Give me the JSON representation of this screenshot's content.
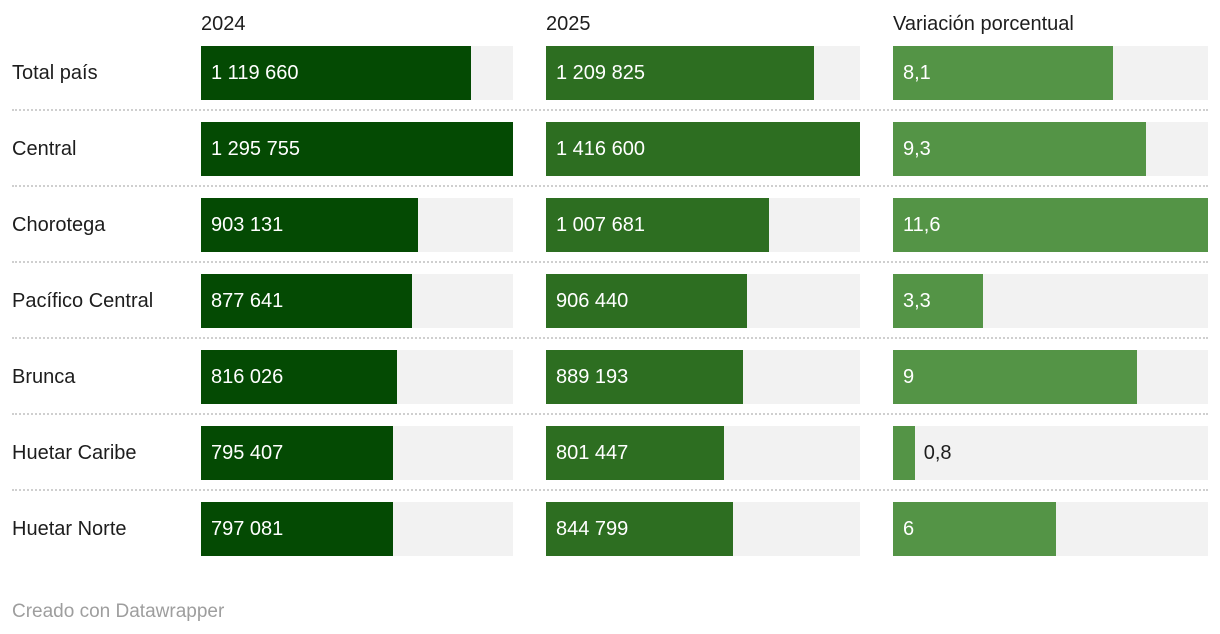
{
  "colors": {
    "y2024": "#044a03",
    "y2025": "#2d6e21",
    "variation": "#549446",
    "track": "#f2f2f2",
    "text": "#1d1d1d",
    "bar_label_inside": "#ffffff",
    "bar_label_outside": "#1d1d1d",
    "separator": "#cfcfcf",
    "credit_text": "#9e9e9e"
  },
  "footer": {
    "credit": "Creado con Datawrapper"
  },
  "chart_data": {
    "type": "bar",
    "title": "",
    "orientation": "horizontal",
    "layout_note": "three side-by-side bar columns, each scaled linearly from 0 to its own column maximum, light gray track behind each bar, dotted separators between rows",
    "columns": [
      {
        "key": "y2024",
        "label": "2024",
        "max": 1295755
      },
      {
        "key": "y2025",
        "label": "2025",
        "max": 1416600
      },
      {
        "key": "variation",
        "label": "Variación porcentual",
        "max": 11.6
      }
    ],
    "rows": [
      {
        "label": "Total país",
        "y2024": 1119660,
        "y2024_display": "1 119 660",
        "y2025": 1209825,
        "y2025_display": "1 209 825",
        "variation": 8.1,
        "variation_display": "8,1"
      },
      {
        "label": "Central",
        "y2024": 1295755,
        "y2024_display": "1 295 755",
        "y2025": 1416600,
        "y2025_display": "1 416 600",
        "variation": 9.3,
        "variation_display": "9,3"
      },
      {
        "label": "Chorotega",
        "y2024": 903131,
        "y2024_display": "903 131",
        "y2025": 1007681,
        "y2025_display": "1 007 681",
        "variation": 11.6,
        "variation_display": "11,6"
      },
      {
        "label": "Pacífico Central",
        "y2024": 877641,
        "y2024_display": "877 641",
        "y2025": 906440,
        "y2025_display": "906 440",
        "variation": 3.3,
        "variation_display": "3,3"
      },
      {
        "label": "Brunca",
        "y2024": 816026,
        "y2024_display": "816 026",
        "y2025": 889193,
        "y2025_display": "889 193",
        "variation": 9,
        "variation_display": "9"
      },
      {
        "label": "Huetar Caribe",
        "y2024": 795407,
        "y2024_display": "795 407",
        "y2025": 801447,
        "y2025_display": "801 447",
        "variation": 0.8,
        "variation_display": "0,8"
      },
      {
        "label": "Huetar Norte",
        "y2024": 797081,
        "y2024_display": "797 081",
        "y2025": 844799,
        "y2025_display": "844 799",
        "variation": 6,
        "variation_display": "6"
      }
    ]
  }
}
